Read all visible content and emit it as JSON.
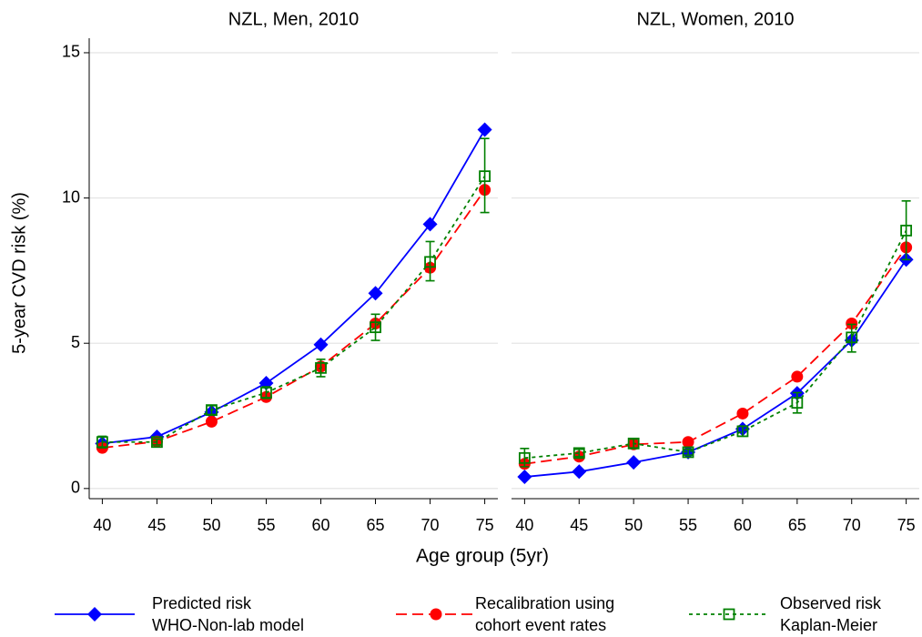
{
  "chart_data": [
    {
      "type": "line",
      "title": "NZL, Men, 2010",
      "x": [
        40,
        45,
        50,
        55,
        60,
        65,
        70,
        75
      ],
      "xlim": [
        38.8,
        76.2
      ],
      "xticks": [
        40,
        45,
        50,
        55,
        60,
        65,
        70,
        75
      ],
      "ylim": [
        -0.35,
        15.5
      ],
      "yticks": [
        0,
        5,
        10,
        15
      ],
      "grid": true,
      "series": [
        {
          "name": "Predicted risk\nWHO-Non-lab model",
          "color": "#0000ff",
          "marker": "diamond",
          "line_style": "solid",
          "values": [
            1.55,
            1.78,
            2.63,
            3.63,
            4.95,
            6.72,
            9.1,
            12.35
          ]
        },
        {
          "name": "Recalibration using\ncohort event rates",
          "color": "#ff0000",
          "marker": "circle",
          "line_style": "dashed",
          "values": [
            1.4,
            1.62,
            2.3,
            3.15,
            4.2,
            5.68,
            7.6,
            10.28
          ]
        },
        {
          "name": "Observed risk\nKaplan-Meier",
          "color": "#008000",
          "marker": "square",
          "line_style": "dotted",
          "values": [
            1.6,
            1.6,
            2.7,
            3.3,
            4.15,
            5.55,
            7.8,
            10.75
          ],
          "ci": [
            [
              1.4,
              1.8
            ],
            [
              1.5,
              1.7
            ],
            [
              2.55,
              2.85
            ],
            [
              3.1,
              3.5
            ],
            [
              3.85,
              4.45
            ],
            [
              5.1,
              6.0
            ],
            [
              7.15,
              8.5
            ],
            [
              9.5,
              12.05
            ]
          ]
        }
      ]
    },
    {
      "type": "line",
      "title": "NZL, Women, 2010",
      "x": [
        40,
        45,
        50,
        55,
        60,
        65,
        70,
        75
      ],
      "xlim": [
        38.8,
        76.2
      ],
      "xticks": [
        40,
        45,
        50,
        55,
        60,
        65,
        70,
        75
      ],
      "ylim": [
        -0.35,
        15.5
      ],
      "yticks": [
        0,
        5,
        10,
        15
      ],
      "grid": true,
      "series": [
        {
          "color": "#0000ff",
          "marker": "diamond",
          "line_style": "solid",
          "values": [
            0.4,
            0.58,
            0.9,
            1.25,
            2.05,
            3.28,
            5.1,
            7.88
          ]
        },
        {
          "color": "#ff0000",
          "marker": "circle",
          "line_style": "dashed",
          "values": [
            0.85,
            1.1,
            1.52,
            1.6,
            2.58,
            3.85,
            5.68,
            8.3
          ]
        },
        {
          "color": "#008000",
          "marker": "square",
          "line_style": "dotted",
          "values": [
            1.05,
            1.22,
            1.55,
            1.25,
            1.97,
            2.95,
            5.2,
            8.88
          ],
          "ci": [
            [
              0.75,
              1.38
            ],
            [
              1.1,
              1.35
            ],
            [
              1.4,
              1.7
            ],
            [
              1.15,
              1.35
            ],
            [
              1.8,
              2.15
            ],
            [
              2.6,
              3.3
            ],
            [
              4.7,
              5.65
            ],
            [
              7.88,
              9.9
            ]
          ]
        }
      ]
    }
  ],
  "y_label": "5-year CVD risk (%)",
  "x_label": "Age group (5yr)"
}
